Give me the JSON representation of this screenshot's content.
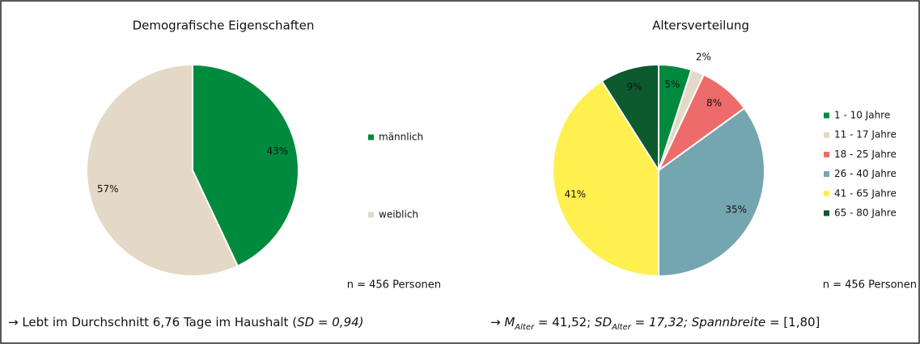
{
  "chart_data": [
    {
      "type": "pie",
      "title": "Demografische Eigenschaften",
      "categories": [
        "männlich",
        "weiblich"
      ],
      "values": [
        43,
        57
      ],
      "value_labels": [
        "43%",
        "57%"
      ],
      "colors": [
        "#008a3e",
        "#e3d9c6"
      ],
      "note": "n = 456 Personen",
      "summary": [
        "→ Lebt im Durchschnitt 6,76 Tage im Haushalt (",
        "SD = 0,94)"
      ]
    },
    {
      "type": "pie",
      "title": "Altersverteilung",
      "categories": [
        "1 - 10 Jahre",
        "11 - 17 Jahre",
        "18 - 25 Jahre",
        "26 - 40 Jahre",
        "41 - 65 Jahre",
        "65 - 80 Jahre"
      ],
      "values": [
        5,
        2,
        8,
        35,
        41,
        9
      ],
      "value_labels": [
        "5%",
        "2%",
        "8%",
        "35%",
        "41%",
        "9%"
      ],
      "colors": [
        "#008a3e",
        "#e3d9c6",
        "#ee6b6b",
        "#74a6b0",
        "#fff04f",
        "#0d5a2f"
      ],
      "note": "n = 456 Personen",
      "summary": [
        "→ ",
        "M",
        "Alter",
        " = 41,52; ",
        "SD",
        "Alter",
        " = ",
        "17,32; Spannbreite",
        " = [1,80]"
      ]
    }
  ]
}
